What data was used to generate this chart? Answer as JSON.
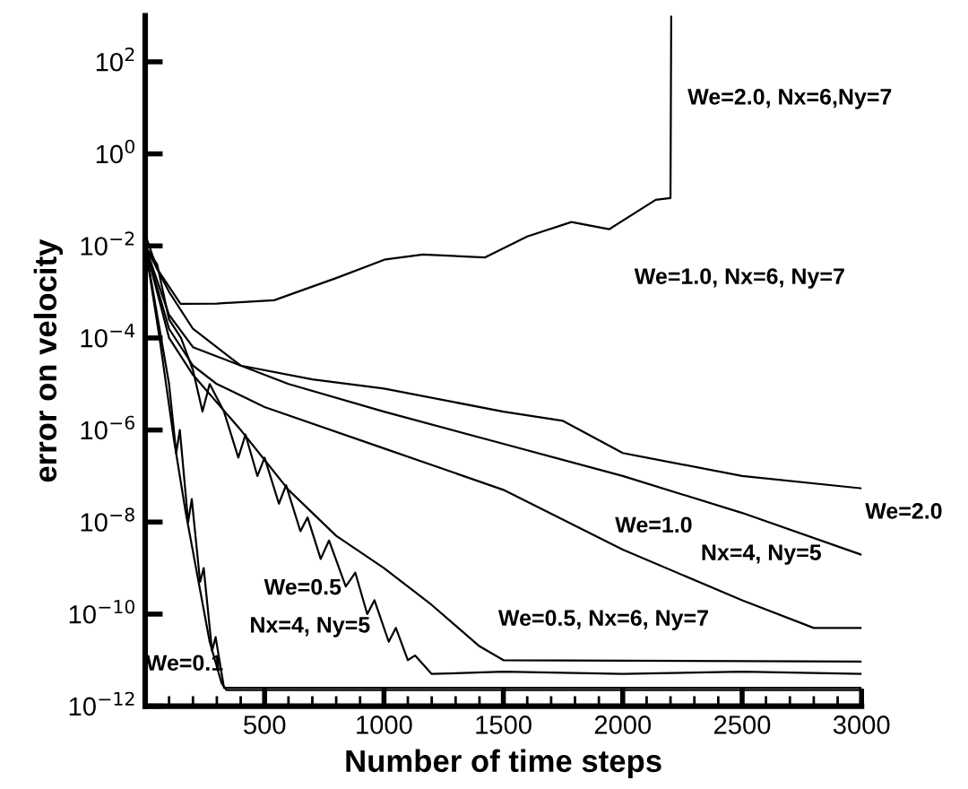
{
  "chart_data": {
    "type": "line",
    "xlabel": "Number of time steps",
    "ylabel": "error on velocity",
    "log": "y",
    "grid": false,
    "marker": "none",
    "line_style": "solid",
    "xlim": [
      0,
      3000
    ],
    "ylim": [
      1e-12,
      1000
    ],
    "xticks": [
      500,
      1000,
      1500,
      2000,
      2500,
      3000
    ],
    "yticks": [
      {
        "value": 1e-12,
        "label": "10$^{−12}$"
      },
      {
        "value": 1e-10,
        "label": "10$^{−10}$"
      },
      {
        "value": 1e-08,
        "label": "10$^{−8}$"
      },
      {
        "value": 1e-06,
        "label": "10$^{−6}$"
      },
      {
        "value": 0.0001,
        "label": "10$^{−4}$"
      },
      {
        "value": 0.01,
        "label": "10$^{−2}$"
      },
      {
        "value": 1,
        "label": "10$^{0}$"
      },
      {
        "value": 100,
        "label": "10$^{2}$"
      }
    ],
    "series": [
      {
        "color": "#000000",
        "x": [
          0,
          50,
          148,
          300,
          540,
          800,
          1006,
          1163,
          1422,
          1600,
          1785,
          1943,
          2138,
          2200,
          2203
        ],
        "values": [
          0.0178,
          0.00316,
          0.00055,
          0.00056,
          0.00066,
          0.002,
          0.0051,
          0.0065,
          0.0056,
          0.016,
          0.033,
          0.023,
          0.1,
          0.11,
          1000
        ]
      },
      {
        "color": "#000000",
        "x": [
          0,
          100,
          200,
          400,
          700,
          1000,
          1500,
          1750,
          2000,
          2500,
          3000
        ],
        "values": [
          0.01,
          0.001,
          0.000158,
          2.51e-05,
          1.26e-05,
          7.94e-06,
          2.51e-06,
          1.58e-06,
          3.16e-07,
          1e-07,
          5.4e-08
        ]
      },
      {
        "color": "#000000",
        "x": [
          0,
          100,
          200,
          400,
          600,
          1000,
          1500,
          2000,
          2500,
          3000
        ],
        "values": [
          0.01,
          0.000316,
          6.31e-05,
          2.51e-05,
          1e-05,
          2.51e-06,
          5.01e-07,
          1e-07,
          1.58e-08,
          1.95e-09
        ]
      },
      {
        "color": "#000000",
        "x": [
          0,
          100,
          200,
          300,
          500,
          1000,
          1500,
          2000,
          2500,
          2800,
          3000
        ],
        "values": [
          0.01,
          0.000158,
          2.51e-05,
          1e-05,
          3.16e-06,
          3.98e-07,
          5.01e-08,
          2.51e-09,
          2e-10,
          5.01e-11,
          5.01e-11
        ]
      },
      {
        "color": "#000000",
        "x": [
          0,
          100,
          200,
          400,
          600,
          800,
          1000,
          1200,
          1400,
          1500,
          3000
        ],
        "values": [
          0.01,
          0.0001,
          1.58e-05,
          1e-06,
          5.01e-08,
          5.01e-09,
          1e-09,
          1.58e-10,
          2e-11,
          1e-11,
          9.3e-12
        ]
      },
      {
        "color": "#000000",
        "x": [
          0,
          50,
          100,
          150,
          200,
          240,
          270,
          330,
          390,
          420,
          470,
          500,
          560,
          590,
          650,
          680,
          735,
          770,
          840,
          880,
          930,
          960,
          1020,
          1050,
          1100,
          1130,
          1200,
          1500,
          2000,
          2500,
          3000
        ],
        "values": [
          0.01,
          0.00398,
          0.000251,
          0.0001,
          2e-05,
          2.51e-06,
          1e-05,
          2.51e-06,
          2.51e-07,
          7.94e-07,
          1e-07,
          2.51e-07,
          2.51e-08,
          6.31e-08,
          6.31e-09,
          1.26e-08,
          1.58e-09,
          3.98e-09,
          3.98e-10,
          7.94e-10,
          1e-10,
          2e-10,
          2.51e-11,
          5.01e-11,
          1e-11,
          1.26e-11,
          5.01e-12,
          5.6e-12,
          5.01e-12,
          5.6e-12,
          5.01e-12
        ]
      },
      {
        "color": "#000000",
        "x": [
          0,
          50,
          100,
          130,
          145,
          180,
          195,
          230,
          245,
          280,
          295,
          330,
          3000
        ],
        "values": [
          0.01,
          0.000316,
          1e-05,
          3.16e-07,
          1e-06,
          1e-08,
          3.16e-08,
          5.01e-10,
          1e-09,
          1.58e-11,
          3.16e-11,
          2.51e-12,
          2.51e-12
        ]
      },
      {
        "color": "#000000",
        "x": [
          0,
          60,
          120,
          170,
          220,
          270,
          320,
          340,
          3000
        ],
        "values": [
          0.01,
          0.0001,
          6.31e-07,
          1.58e-08,
          6.31e-10,
          2.51e-11,
          3.16e-12,
          2.24e-12,
          2.24e-12
        ]
      }
    ],
    "annotations": [
      "We=2.0, Nx=6,Ny=7",
      "We=1.0, Nx=6, Ny=7",
      "We=2.0",
      "We=1.0",
      "Nx=4, Ny=5",
      "We=0.5",
      "Nx=4, Ny=5",
      "We=0.5, Nx=6, Ny=7",
      "We=0.1"
    ]
  }
}
